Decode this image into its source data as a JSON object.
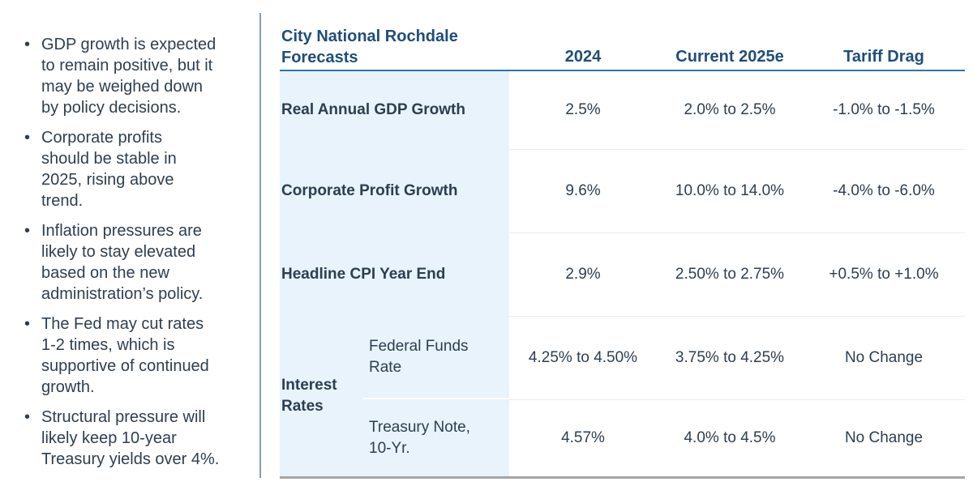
{
  "bullets": {
    "marker": "•",
    "items": [
      "GDP growth is expected\nto remain positive, but it\nmay be weighed down\nby policy decisions.",
      "Corporate profits\nshould be stable in\n2025, rising above\ntrend.",
      "Inflation pressures are\nlikely to stay elevated\nbased on the new\nadministration’s policy.",
      "The Fed may cut rates\n1-2 times, which is\nsupportive of continued\ngrowth.",
      "Structural pressure will\nlikely keep 10-year\nTreasury yields over 4%."
    ]
  },
  "table": {
    "title": "City National Rochdale\nForecasts",
    "columns": {
      "y2024": "2024",
      "current2025e": "Current 2025e",
      "tariffDrag": "Tariff Drag"
    },
    "rows": [
      {
        "label": "Real Annual GDP Growth",
        "v2024": "2.5%",
        "v2025": "2.0% to 2.5%",
        "tariff": "-1.0% to -1.5%"
      },
      {
        "label": "Corporate Profit Growth",
        "v2024": "9.6%",
        "v2025": "10.0% to 14.0%",
        "tariff": "-4.0% to -6.0%"
      },
      {
        "label": "Headline CPI Year End",
        "v2024": "2.9%",
        "v2025": "2.50% to 2.75%",
        "tariff": "+0.5% to +1.0%"
      },
      {
        "group": "Interest Rates",
        "label": "Federal Funds\nRate",
        "v2024": "4.25% to 4.50%",
        "v2025": "3.75% to 4.25%",
        "tariff": "No Change"
      },
      {
        "label": "Treasury Note,\n10-Yr.",
        "v2024": "4.57%",
        "v2025": "4.0% to 4.5%",
        "tariff": "No Change"
      }
    ]
  },
  "colors": {
    "heading_blue": "#1F4E79",
    "header_rule_blue": "#2E74B5",
    "body_text": "#2E3E50",
    "label_column_bg": "#E8F3FB",
    "row_divider": "#ECECEC",
    "bottom_rule_gray": "#A6A6A6",
    "vertical_divider_blue": "#7E9EC0"
  }
}
